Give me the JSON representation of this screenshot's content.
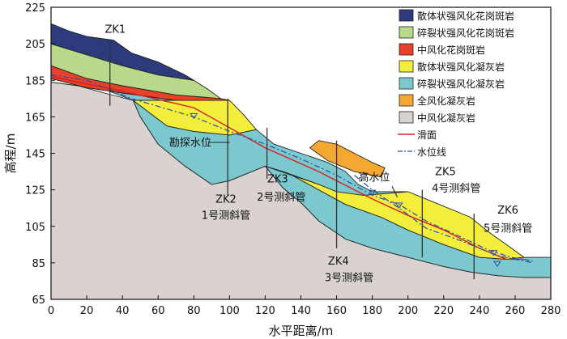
{
  "chart_data": {
    "type": "geological-cross-section",
    "xlabel": "水平距离/m",
    "ylabel": "高程/m",
    "xlim": [
      0,
      280
    ],
    "ylim": [
      65,
      225
    ],
    "xticks": [
      0,
      20,
      40,
      60,
      80,
      100,
      120,
      140,
      160,
      180,
      200,
      220,
      240,
      260,
      280
    ],
    "yticks": [
      65,
      85,
      105,
      125,
      145,
      165,
      185,
      205,
      225
    ],
    "grid": false,
    "legend_position": "top-right",
    "legend": [
      {
        "key": "granite_loose",
        "label": "散体状强风化花岗斑岩",
        "color": "#2d3a7c",
        "kind": "patch"
      },
      {
        "key": "granite_frag",
        "label": "碎裂状强风化花岗斑岩",
        "color": "#b8d98a",
        "kind": "patch"
      },
      {
        "key": "granite_mod",
        "label": "中风化花岗斑岩",
        "color": "#e8412a",
        "kind": "patch"
      },
      {
        "key": "tuff_loose",
        "label": "散体状强风化凝灰岩",
        "color": "#f3ee3c",
        "kind": "patch"
      },
      {
        "key": "tuff_frag",
        "label": "碎裂状强风化凝灰岩",
        "color": "#7cc8cf",
        "kind": "patch"
      },
      {
        "key": "tuff_full",
        "label": "全风化凝灰岩",
        "color": "#f4a832",
        "kind": "patch"
      },
      {
        "key": "tuff_mod",
        "label": "中风化凝灰岩",
        "color": "#d9d2d0",
        "kind": "patch"
      },
      {
        "key": "slip",
        "label": "滑面",
        "color": "#d62020",
        "kind": "line"
      },
      {
        "key": "water",
        "label": "水位线",
        "color": "#2b4aa8",
        "kind": "dashdot"
      }
    ],
    "layers": [
      {
        "key": "granite_loose",
        "polygon": [
          [
            0,
            216
          ],
          [
            10,
            212
          ],
          [
            20,
            209
          ],
          [
            35,
            207
          ],
          [
            45,
            200
          ],
          [
            60,
            195
          ],
          [
            75,
            188
          ],
          [
            80,
            185
          ],
          [
            60,
            188
          ],
          [
            40,
            193
          ],
          [
            20,
            199
          ],
          [
            0,
            205
          ]
        ]
      },
      {
        "key": "granite_frag",
        "polygon": [
          [
            0,
            205
          ],
          [
            20,
            199
          ],
          [
            40,
            193
          ],
          [
            60,
            188
          ],
          [
            80,
            185
          ],
          [
            88,
            180
          ],
          [
            95,
            175
          ],
          [
            70,
            177
          ],
          [
            40,
            182
          ],
          [
            20,
            186
          ],
          [
            0,
            193
          ]
        ]
      },
      {
        "key": "granite_mod",
        "polygon": [
          [
            0,
            193
          ],
          [
            20,
            186
          ],
          [
            40,
            182
          ],
          [
            70,
            177
          ],
          [
            95,
            175
          ],
          [
            100,
            174
          ],
          [
            70,
            174
          ],
          [
            40,
            178
          ],
          [
            20,
            181
          ],
          [
            0,
            186
          ]
        ]
      },
      {
        "key": "tuff_loose",
        "polygon": [
          [
            46,
            174
          ],
          [
            100,
            174
          ],
          [
            108,
            166
          ],
          [
            115,
            158
          ],
          [
            100,
            155
          ],
          [
            80,
            157
          ],
          [
            65,
            160
          ]
        ]
      },
      {
        "key": "tuff_frag",
        "polygon": [
          [
            0,
            186
          ],
          [
            20,
            181
          ],
          [
            40,
            178
          ],
          [
            70,
            174
          ],
          [
            100,
            174
          ],
          [
            96,
            174
          ],
          [
            46,
            174
          ],
          [
            30,
            180
          ],
          [
            15,
            184
          ],
          [
            0,
            186
          ]
        ]
      },
      {
        "key": "tuff_frag",
        "polygon": [
          [
            46,
            174
          ],
          [
            65,
            160
          ],
          [
            80,
            157
          ],
          [
            100,
            155
          ],
          [
            115,
            158
          ],
          [
            125,
            150
          ],
          [
            140,
            145
          ],
          [
            155,
            140
          ],
          [
            165,
            135
          ],
          [
            172,
            128
          ],
          [
            180,
            124
          ],
          [
            200,
            124
          ],
          [
            175,
            122
          ],
          [
            160,
            124
          ],
          [
            150,
            128
          ],
          [
            130,
            135
          ],
          [
            120,
            138
          ],
          [
            110,
            134
          ],
          [
            100,
            130
          ],
          [
            90,
            128
          ],
          [
            75,
            138
          ],
          [
            60,
            150
          ],
          [
            50,
            165
          ]
        ]
      },
      {
        "key": "tuff_full",
        "polygon": [
          [
            145,
            148
          ],
          [
            150,
            152
          ],
          [
            160,
            150
          ],
          [
            170,
            145
          ],
          [
            180,
            140
          ],
          [
            187,
            137
          ],
          [
            185,
            132
          ],
          [
            170,
            135
          ],
          [
            155,
            141
          ]
        ]
      },
      {
        "key": "tuff_loose",
        "polygon": [
          [
            120,
            138
          ],
          [
            150,
            128
          ],
          [
            175,
            122
          ],
          [
            200,
            124
          ],
          [
            215,
            118
          ],
          [
            235,
            110
          ],
          [
            245,
            102
          ],
          [
            258,
            93
          ],
          [
            265,
            88
          ],
          [
            255,
            87
          ],
          [
            240,
            88
          ],
          [
            220,
            95
          ],
          [
            200,
            103
          ],
          [
            185,
            110
          ],
          [
            165,
            117
          ],
          [
            150,
            125
          ],
          [
            135,
            133
          ]
        ]
      },
      {
        "key": "tuff_frag",
        "polygon": [
          [
            120,
            138
          ],
          [
            135,
            133
          ],
          [
            150,
            125
          ],
          [
            165,
            117
          ],
          [
            185,
            110
          ],
          [
            200,
            103
          ],
          [
            220,
            95
          ],
          [
            240,
            88
          ],
          [
            255,
            87
          ],
          [
            265,
            88
          ],
          [
            280,
            88
          ],
          [
            280,
            77
          ],
          [
            265,
            77
          ],
          [
            250,
            78
          ],
          [
            235,
            80
          ],
          [
            220,
            83
          ],
          [
            200,
            88
          ],
          [
            180,
            93
          ],
          [
            165,
            98
          ],
          [
            150,
            108
          ],
          [
            140,
            118
          ],
          [
            130,
            126
          ]
        ]
      },
      {
        "key": "tuff_mod",
        "polygon": [
          [
            0,
            184
          ],
          [
            15,
            182
          ],
          [
            30,
            178
          ],
          [
            46,
            174
          ],
          [
            50,
            165
          ],
          [
            60,
            150
          ],
          [
            75,
            138
          ],
          [
            90,
            128
          ],
          [
            100,
            130
          ],
          [
            110,
            134
          ],
          [
            120,
            138
          ],
          [
            130,
            126
          ],
          [
            140,
            118
          ],
          [
            150,
            108
          ],
          [
            165,
            98
          ],
          [
            180,
            93
          ],
          [
            200,
            88
          ],
          [
            220,
            83
          ],
          [
            235,
            80
          ],
          [
            250,
            78
          ],
          [
            265,
            77
          ],
          [
            280,
            77
          ],
          [
            280,
            65
          ],
          [
            0,
            65
          ]
        ]
      }
    ],
    "slip_surface": [
      [
        0,
        187
      ],
      [
        40,
        179
      ],
      [
        80,
        170
      ],
      [
        100,
        159
      ],
      [
        120,
        148
      ],
      [
        150,
        135
      ],
      [
        180,
        120
      ],
      [
        200,
        111
      ],
      [
        220,
        103
      ],
      [
        240,
        93
      ],
      [
        255,
        87
      ],
      [
        265,
        87
      ]
    ],
    "water_level": [
      [
        0,
        188
      ],
      [
        20,
        185
      ],
      [
        45,
        175
      ],
      [
        80,
        165
      ],
      [
        100,
        157
      ],
      [
        120,
        150
      ],
      [
        140,
        142
      ],
      [
        160,
        133
      ],
      [
        180,
        122
      ],
      [
        195,
        117
      ],
      [
        210,
        108
      ],
      [
        230,
        99
      ],
      [
        245,
        92
      ],
      [
        258,
        88
      ],
      [
        270,
        86
      ]
    ],
    "water_level_2": [
      [
        170,
        133
      ],
      [
        180,
        125
      ],
      [
        195,
        115
      ],
      [
        210,
        104
      ],
      [
        230,
        97
      ],
      [
        250,
        89
      ],
      [
        270,
        85
      ]
    ],
    "boreholes": [
      {
        "name": "ZK1",
        "x": 33,
        "top": 207,
        "bottom": 171
      },
      {
        "name": "ZK2",
        "x": 99,
        "top": 175,
        "bottom": 122
      },
      {
        "name": "ZK3",
        "x": 121,
        "top": 159,
        "bottom": 131
      },
      {
        "name": "ZK4",
        "x": 160,
        "top": 152,
        "bottom": 93
      },
      {
        "name": "ZK5",
        "x": 208,
        "top": 125,
        "bottom": 88
      },
      {
        "name": "ZK6",
        "x": 237,
        "top": 112,
        "bottom": 76
      }
    ],
    "annotations": [
      {
        "id": "zk1",
        "text": "ZK1",
        "x": 36,
        "y": 211
      },
      {
        "id": "kanta",
        "text": "勘探水位",
        "x": 78,
        "y": 149
      },
      {
        "id": "zk2",
        "text": "ZK2",
        "x": 98,
        "y": 118
      },
      {
        "id": "inc1",
        "text": "1号测斜管",
        "x": 98,
        "y": 109
      },
      {
        "id": "zk3",
        "text": "ZK3",
        "x": 127,
        "y": 129
      },
      {
        "id": "inc2",
        "text": "2号测斜管",
        "x": 129,
        "y": 119
      },
      {
        "id": "gaoshui",
        "text": "高水位",
        "x": 181,
        "y": 130
      },
      {
        "id": "zk5",
        "text": "ZK5",
        "x": 221,
        "y": 133
      },
      {
        "id": "inc4",
        "text": "4号测斜管",
        "x": 227,
        "y": 124
      },
      {
        "id": "zk6",
        "text": "ZK6",
        "x": 256,
        "y": 112
      },
      {
        "id": "inc5",
        "text": "5号测斜管",
        "x": 256,
        "y": 102
      },
      {
        "id": "zk4",
        "text": "ZK4",
        "x": 161,
        "y": 84
      },
      {
        "id": "inc3",
        "text": "3号测斜管",
        "x": 167,
        "y": 75
      }
    ]
  }
}
